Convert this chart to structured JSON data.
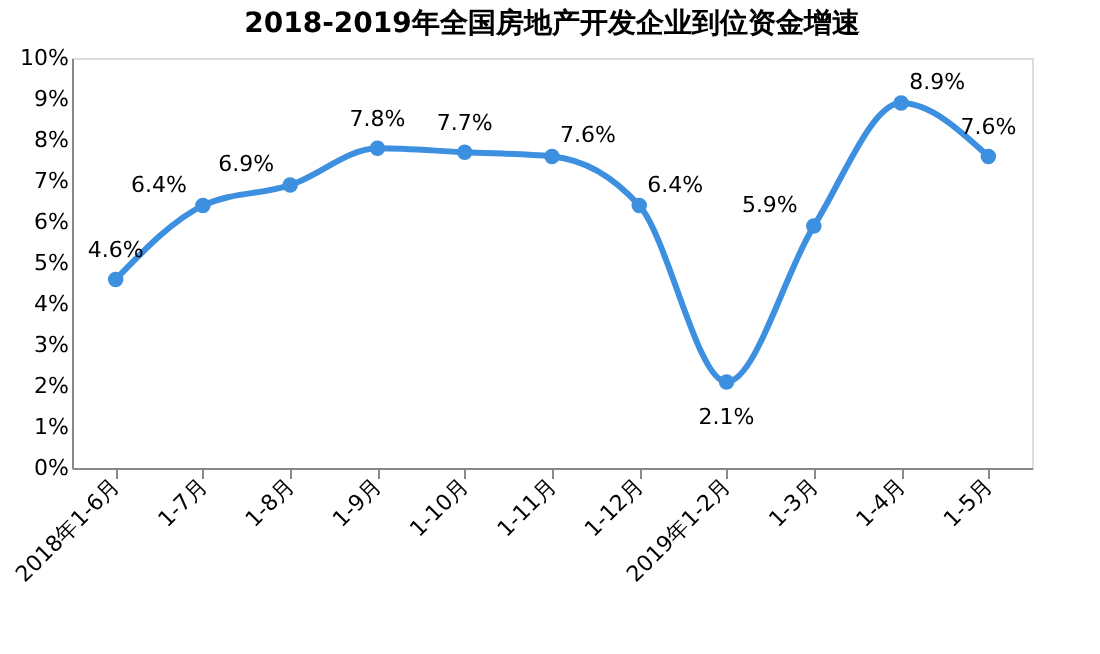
{
  "chart_data": {
    "type": "line",
    "title": "2018-2019年全国房地产开发企业到位资金增速",
    "categories": [
      "2018年1-6月",
      "1-7月",
      "1-8月",
      "1-9月",
      "1-10月",
      "1-11月",
      "1-12月",
      "2019年1-2月",
      "1-3月",
      "1-4月",
      "1-5月"
    ],
    "series": [
      {
        "color": "#3d8fe0",
        "values": [
          4.6,
          6.4,
          6.9,
          7.8,
          7.7,
          7.6,
          6.4,
          2.1,
          5.9,
          8.9,
          7.6
        ]
      }
    ],
    "value_labels": [
      "4.6%",
      "6.4%",
      "6.9%",
      "7.8%",
      "7.7%",
      "7.6%",
      "6.4%",
      "2.1%",
      "5.9%",
      "8.9%",
      "7.6%"
    ],
    "ylim": [
      0,
      10
    ],
    "yticks": [
      {
        "value": 0,
        "label": "0%"
      },
      {
        "value": 1,
        "label": "1%"
      },
      {
        "value": 2,
        "label": "2%"
      },
      {
        "value": 3,
        "label": "3%"
      },
      {
        "value": 4,
        "label": "4%"
      },
      {
        "value": 5,
        "label": "5%"
      },
      {
        "value": 6,
        "label": "6%"
      },
      {
        "value": 7,
        "label": "7%"
      },
      {
        "value": 8,
        "label": "8%"
      },
      {
        "value": 9,
        "label": "9%"
      },
      {
        "value": 10,
        "label": "10%"
      }
    ],
    "grid": false,
    "marker": "circle",
    "line_style": "solid"
  }
}
